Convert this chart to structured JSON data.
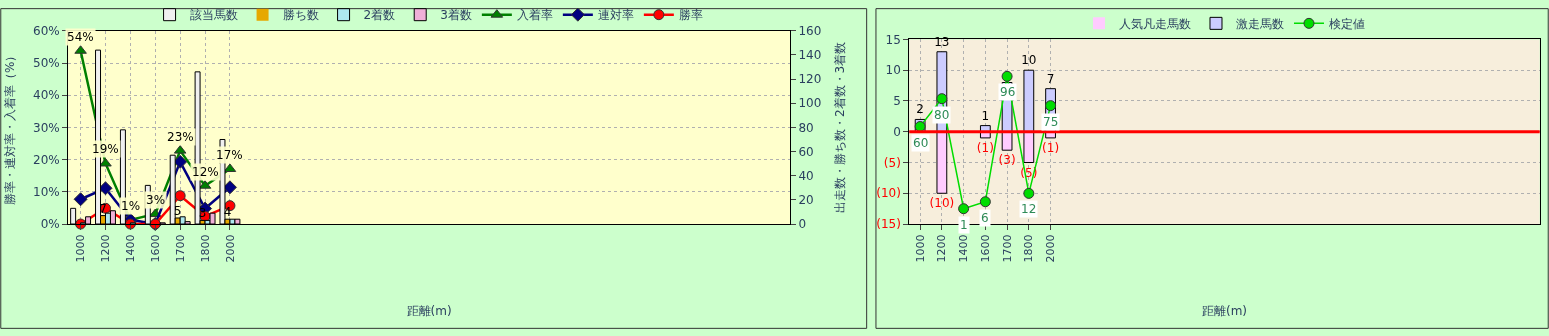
{
  "chart_data": [
    {
      "type": "bar",
      "categories": [
        "1000",
        "1200",
        "1400",
        "1600",
        "1700",
        "1800",
        "2000",
        null,
        null,
        null,
        null,
        null,
        null,
        null,
        null,
        null,
        null,
        null,
        null,
        null,
        null,
        null,
        null,
        null,
        null,
        null,
        null,
        null,
        null
      ],
      "xlabel": "距離(m)",
      "ylabel": "勝率・連対率・入着率（%）",
      "y2label": "出走数・勝ち数・2着数・3着数",
      "ylim": [
        0,
        60
      ],
      "yticks": [
        {
          "value": 0,
          "label": "0%"
        },
        {
          "value": 10,
          "label": "10%"
        },
        {
          "value": 20,
          "label": "20%"
        },
        {
          "value": 30,
          "label": "30%"
        },
        {
          "value": 40,
          "label": "40%"
        },
        {
          "value": 50,
          "label": "50%"
        },
        {
          "value": 60,
          "label": "60%"
        }
      ],
      "y2lim": [
        0,
        160
      ],
      "y2ticks": [
        0,
        20,
        40,
        60,
        80,
        100,
        120,
        140,
        160
      ],
      "grid": true,
      "legend": "top",
      "series": [
        {
          "name": "該当馬数",
          "axis": "y2",
          "color": "#f0f0f0",
          "values": [
            13,
            144,
            78,
            32,
            57,
            126,
            70,
            null,
            null,
            null,
            null,
            null,
            null,
            null,
            null,
            null,
            null,
            null,
            null,
            null,
            null,
            null,
            null,
            null,
            null,
            null,
            null,
            null,
            null
          ]
        },
        {
          "name": "勝ち数",
          "axis": "y2",
          "color": "#e6a800",
          "values": [
            0,
            7,
            0,
            0,
            5,
            3,
            4,
            null,
            null,
            null,
            null,
            null,
            null,
            null,
            null,
            null,
            null,
            null,
            null,
            null,
            null,
            null,
            null,
            null,
            null,
            null,
            null,
            null,
            null
          ],
          "value_labels": [
            null,
            "7",
            null,
            null,
            "5",
            "3",
            "4",
            null,
            null,
            null,
            null,
            null,
            null,
            null,
            null,
            null,
            null,
            null,
            null,
            null,
            null,
            null,
            null,
            null,
            null,
            null,
            null,
            null,
            null
          ]
        },
        {
          "name": "2着数",
          "axis": "y2",
          "color": "#aee8f0",
          "values": [
            1,
            9,
            1,
            0,
            6,
            3,
            4,
            null,
            null,
            null,
            null,
            null,
            null,
            null,
            null,
            null,
            null,
            null,
            null,
            null,
            null,
            null,
            null,
            null,
            null,
            null,
            null,
            null,
            null
          ]
        },
        {
          "name": "3着数",
          "axis": "y2",
          "color": "#f0b0d8",
          "values": [
            6,
            11,
            0,
            1,
            2,
            9,
            4,
            null,
            null,
            null,
            null,
            null,
            null,
            null,
            null,
            null,
            null,
            null,
            null,
            null,
            null,
            null,
            null,
            null,
            null,
            null,
            null,
            null,
            null
          ]
        },
        {
          "name": "入着率",
          "type": "line",
          "color": "#008000",
          "marker": "triangle",
          "values": [
            53.8,
            18.8,
            1.3,
            3.1,
            22.8,
            11.9,
            17.1,
            null,
            null,
            null,
            null,
            null,
            null,
            null,
            null,
            null,
            null,
            null,
            null,
            null,
            null,
            null,
            null,
            null,
            null,
            null,
            null,
            null,
            null
          ],
          "value_labels": [
            "54%",
            "19%",
            "1%",
            "3%",
            "23%",
            "12%",
            "17%",
            null,
            null,
            null,
            null,
            null,
            null,
            null,
            null,
            null,
            null,
            null,
            null,
            null,
            null,
            null,
            null,
            null,
            null,
            null,
            null,
            null,
            null
          ]
        },
        {
          "name": "連対率",
          "type": "line",
          "color": "#000080",
          "marker": "diamond",
          "values": [
            7.7,
            11.1,
            1.3,
            0,
            19.3,
            4.8,
            11.4,
            null,
            null,
            null,
            null,
            null,
            null,
            null,
            null,
            null,
            null,
            null,
            null,
            null,
            null,
            null,
            null,
            null,
            null,
            null,
            null,
            null,
            null
          ]
        },
        {
          "name": "勝率",
          "type": "line",
          "color": "#ff0000",
          "marker": "circle",
          "values": [
            0,
            4.9,
            0,
            0,
            8.8,
            2.4,
            5.7,
            null,
            null,
            null,
            null,
            null,
            null,
            null,
            null,
            null,
            null,
            null,
            null,
            null,
            null,
            null,
            null,
            null,
            null,
            null,
            null,
            null,
            null
          ]
        }
      ]
    },
    {
      "type": "bar",
      "stacked": true,
      "categories": [
        "1000",
        "1200",
        "1400",
        "1600",
        "1700",
        "1800",
        "2000",
        null,
        null,
        null,
        null,
        null,
        null,
        null,
        null,
        null,
        null,
        null,
        null,
        null,
        null,
        null,
        null,
        null,
        null,
        null,
        null,
        null,
        null
      ],
      "xlabel": "距離(m)",
      "ylim": [
        -15,
        15
      ],
      "yticks": [
        {
          "value": -15,
          "label": "(15)"
        },
        {
          "value": -10,
          "label": "(10)"
        },
        {
          "value": -5,
          "label": "(5)"
        },
        0,
        5,
        10,
        15
      ],
      "y2lim": [
        -10,
        122.5
      ],
      "grid": true,
      "legend": "top",
      "ref_lines": [
        {
          "axis": "y",
          "value": 0,
          "color": "#ff0000"
        }
      ],
      "series": [
        {
          "name": "人気凡走馬数",
          "color": "#ffccff",
          "values": [
            null,
            -10,
            null,
            -1,
            -3,
            -5,
            -1,
            null,
            null,
            null,
            null,
            null,
            null,
            null,
            null,
            null,
            null,
            null,
            null,
            null,
            null,
            null,
            null,
            null,
            null,
            null,
            null,
            null,
            null
          ],
          "value_labels": [
            null,
            "(10)",
            null,
            "(1)",
            "(3)",
            "(5)",
            "(1)",
            null,
            null,
            null,
            null,
            null,
            null,
            null,
            null,
            null,
            null,
            null,
            null,
            null,
            null,
            null,
            null,
            null,
            null,
            null,
            null,
            null,
            null
          ]
        },
        {
          "name": "激走馬数",
          "color": "#ccccff",
          "values": [
            2,
            13,
            null,
            1,
            8,
            10,
            7,
            null,
            null,
            null,
            null,
            null,
            null,
            null,
            null,
            null,
            null,
            null,
            null,
            null,
            null,
            null,
            null,
            null,
            null,
            null,
            null,
            null,
            null
          ],
          "value_labels": [
            "2",
            "13",
            null,
            "1",
            null,
            "10",
            "7",
            null,
            null,
            null,
            null,
            null,
            null,
            null,
            null,
            null,
            null,
            null,
            null,
            null,
            null,
            null,
            null,
            null,
            null,
            null,
            null,
            null,
            null
          ]
        },
        {
          "name": "検定値",
          "type": "line",
          "axis": "y2",
          "color": "#00dd00",
          "marker": "circle",
          "values": [
            60,
            80,
            1,
            6,
            96,
            12,
            75,
            null,
            null,
            null,
            null,
            null,
            null,
            null,
            null,
            null,
            null,
            null,
            null,
            null,
            null,
            null,
            null,
            null,
            null,
            null,
            null,
            null,
            null
          ],
          "value_labels": [
            "60",
            "80",
            "1",
            "6",
            "96",
            "12",
            "75",
            null,
            null,
            null,
            null,
            null,
            null,
            null,
            null,
            null,
            null,
            null,
            null,
            null,
            null,
            null,
            null,
            null,
            null,
            null,
            null,
            null,
            null
          ]
        }
      ]
    }
  ]
}
